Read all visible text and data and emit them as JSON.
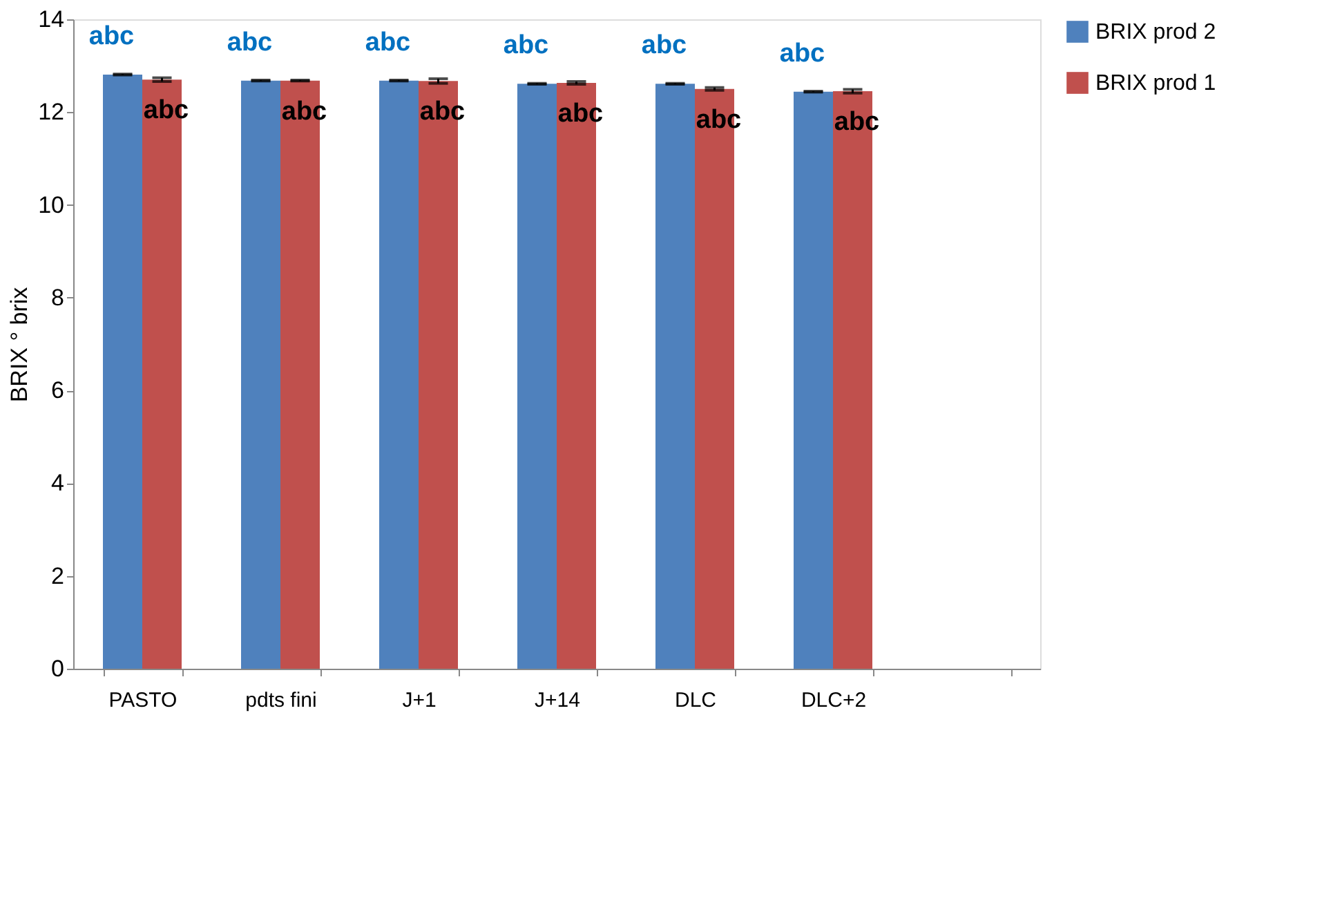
{
  "chart_data": {
    "type": "bar",
    "ylabel": "BRIX ° brix",
    "categories": [
      "PASTO",
      "pdts fini",
      "J+1",
      "J+14",
      "DLC",
      "DLC+2",
      null
    ],
    "series": [
      {
        "name": "BRIX prod 2",
        "color": "#4f81bd",
        "values": [
          12.81,
          12.68,
          12.68,
          12.61,
          12.61,
          12.44,
          null
        ],
        "errors": [
          0.01,
          0.01,
          0.01,
          0.01,
          0.01,
          0.01,
          null
        ],
        "value_labels": [
          "abc",
          "abc",
          "abc",
          "abc",
          "abc",
          "abc",
          null
        ]
      },
      {
        "name": "BRIX prod 1",
        "color": "#c0504d",
        "values": [
          12.7,
          12.68,
          12.67,
          12.63,
          12.5,
          12.45,
          null
        ],
        "errors": [
          0.04,
          0.01,
          0.05,
          0.03,
          0.03,
          0.04,
          null
        ],
        "value_labels": [
          "abc",
          "abc",
          "abc",
          "abc",
          "abc",
          "abc",
          null
        ]
      }
    ],
    "ylim": [
      0,
      14
    ],
    "yticks": [
      0,
      2,
      4,
      6,
      8,
      10,
      12,
      14
    ],
    "grid": false,
    "legend": "right"
  }
}
